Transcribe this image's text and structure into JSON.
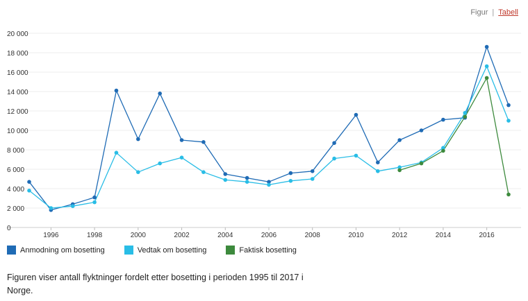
{
  "view_toggle": {
    "figure_label": "Figur",
    "separator": "|",
    "table_label": "Tabell"
  },
  "caption": "Figuren viser antall flyktninger fordelt etter bosetting i perioden 1995 til 2017 i Norge.",
  "chart_data": {
    "type": "line",
    "title": "",
    "xlabel": "",
    "ylabel": "",
    "xlim": [
      1995,
      2017
    ],
    "ylim": [
      0,
      20000
    ],
    "yticks": [
      0,
      2000,
      4000,
      6000,
      8000,
      10000,
      12000,
      14000,
      16000,
      18000,
      20000
    ],
    "ytick_labels": [
      "0",
      "2 000",
      "4 000",
      "6 000",
      "8 000",
      "10 000",
      "12 000",
      "14 000",
      "16 000",
      "18 000",
      "20 000"
    ],
    "xticks": [
      1996,
      1998,
      2000,
      2002,
      2004,
      2006,
      2008,
      2010,
      2012,
      2014,
      2016
    ],
    "xtick_labels": [
      "1996",
      "1998",
      "2000",
      "2002",
      "2004",
      "2006",
      "2008",
      "2010",
      "2012",
      "2014",
      "2016"
    ],
    "grid": true,
    "legend_position": "bottom-left",
    "series": [
      {
        "name": "Anmodning om bosetting",
        "color": "#1f6bb5",
        "x": [
          1995,
          1996,
          1997,
          1998,
          1999,
          2000,
          2001,
          2002,
          2003,
          2004,
          2005,
          2006,
          2007,
          2008,
          2009,
          2010,
          2011,
          2012,
          2013,
          2014,
          2015,
          2016,
          2017
        ],
        "values": [
          4700,
          1800,
          2400,
          3100,
          14100,
          9100,
          13800,
          9000,
          8800,
          5500,
          5100,
          4700,
          5600,
          5800,
          8700,
          11600,
          6700,
          9000,
          10000,
          11100,
          11300,
          18600,
          12600
        ]
      },
      {
        "name": "Vedtak om bosetting",
        "color": "#29bde6",
        "x": [
          1995,
          1996,
          1997,
          1998,
          1999,
          2000,
          2001,
          2002,
          2003,
          2004,
          2005,
          2006,
          2007,
          2008,
          2009,
          2010,
          2011,
          2012,
          2013,
          2014,
          2015,
          2016,
          2017
        ],
        "values": [
          3800,
          2000,
          2200,
          2600,
          7700,
          5700,
          6600,
          7200,
          5700,
          4900,
          4700,
          4400,
          4800,
          5000,
          7100,
          7400,
          5800,
          6200,
          6700,
          8200,
          11800,
          16600,
          11000
        ]
      },
      {
        "name": "Faktisk bosetting",
        "color": "#3d8a3d",
        "x": [
          2012,
          2013,
          2014,
          2015,
          2016,
          2017
        ],
        "values": [
          5900,
          6600,
          7900,
          11400,
          15400,
          3400
        ]
      }
    ]
  }
}
